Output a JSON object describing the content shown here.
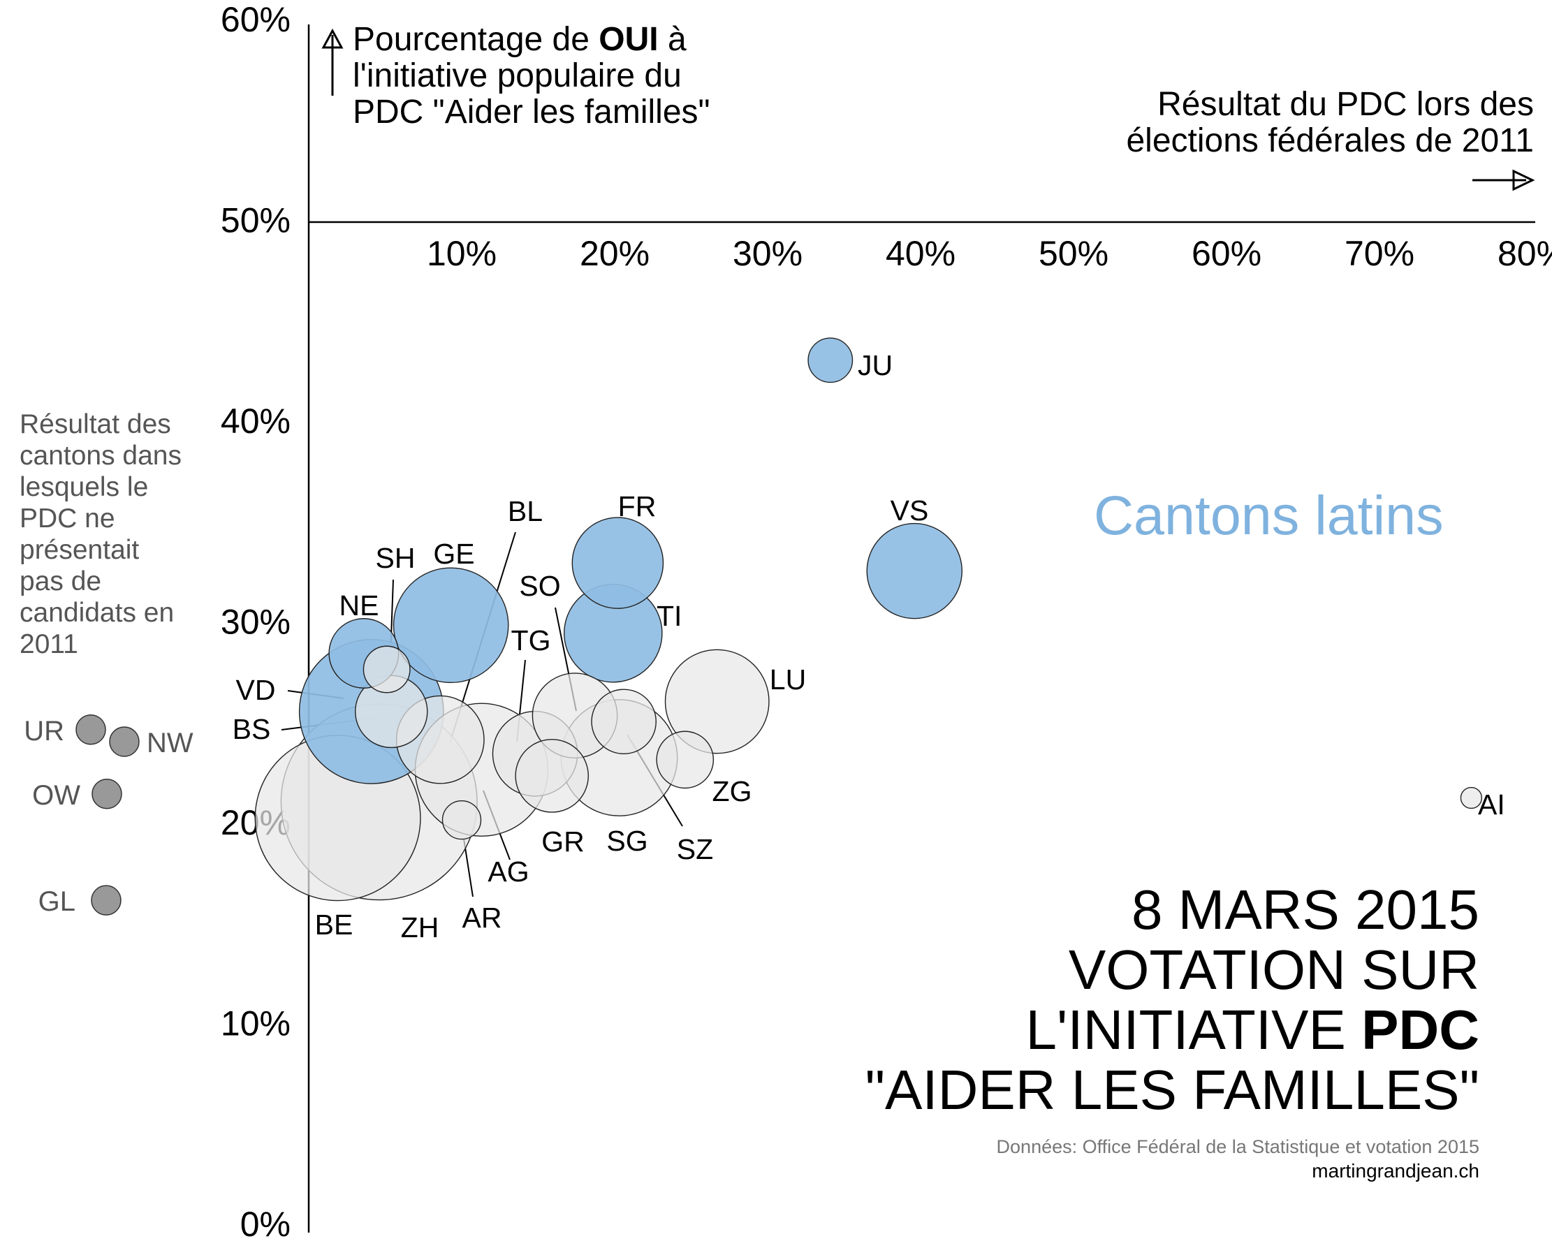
{
  "chart_data": {
    "type": "scatter",
    "subtype": "bubble",
    "ylabel_parts": [
      [
        "Pourcentage de ",
        "OUI",
        " à"
      ],
      [
        "l'initiative populaire du"
      ],
      [
        "PDC \"Aider les familles\""
      ]
    ],
    "xlabel_lines": [
      "Résultat du PDC lors des",
      "élections fédérales de 2011"
    ],
    "xlim": [
      0,
      80
    ],
    "ylim": [
      0,
      60
    ],
    "x_axis_crosses_y": 50,
    "x_ticks": [
      "10%",
      "20%",
      "30%",
      "40%",
      "50%",
      "60%",
      "70%",
      "80%"
    ],
    "y_ticks": [
      "0%",
      "10%",
      "20%",
      "30%",
      "40%",
      "50%",
      "60%"
    ],
    "grid": false,
    "annotation_latin": "Cantons latins",
    "colors": {
      "latin": "#8fbde3",
      "other": "#e8e8e8",
      "no_candidates": "#999999",
      "stroke": "#222222"
    },
    "points": [
      {
        "label": "ZH",
        "x": 4.6,
        "y": 21.0,
        "size": 1408,
        "latin": false
      },
      {
        "label": "BE",
        "x": 1.9,
        "y": 20.2,
        "size": 1001,
        "latin": false
      },
      {
        "label": "VD",
        "x": 4.1,
        "y": 25.5,
        "size": 761,
        "latin": true
      },
      {
        "label": "AG",
        "x": 11.3,
        "y": 22.6,
        "size": 646,
        "latin": false
      },
      {
        "label": "SG",
        "x": 20.3,
        "y": 23.2,
        "size": 495,
        "latin": false
      },
      {
        "label": "GE",
        "x": 9.3,
        "y": 29.8,
        "size": 482,
        "latin": true
      },
      {
        "label": "LU",
        "x": 26.7,
        "y": 26.0,
        "size": 394,
        "latin": false
      },
      {
        "label": "TI",
        "x": 19.9,
        "y": 29.4,
        "size": 351,
        "latin": true
      },
      {
        "label": "VS",
        "x": 39.6,
        "y": 32.5,
        "size": 331,
        "latin": true
      },
      {
        "label": "FR",
        "x": 20.2,
        "y": 32.9,
        "size": 303,
        "latin": true
      },
      {
        "label": "BL",
        "x": 8.6,
        "y": 24.1,
        "size": 281,
        "latin": false
      },
      {
        "label": "TG",
        "x": 14.8,
        "y": 23.4,
        "size": 263,
        "latin": false
      },
      {
        "label": "SO",
        "x": 17.4,
        "y": 25.3,
        "size": 263,
        "latin": false
      },
      {
        "label": "GR",
        "x": 15.9,
        "y": 22.3,
        "size": 194,
        "latin": false
      },
      {
        "label": "BS",
        "x": 5.4,
        "y": 25.5,
        "size": 190,
        "latin": false
      },
      {
        "label": "NE",
        "x": 3.6,
        "y": 28.4,
        "size": 177,
        "latin": true
      },
      {
        "label": "SZ",
        "x": 20.6,
        "y": 25.0,
        "size": 152,
        "latin": false
      },
      {
        "label": "ZG",
        "x": 24.6,
        "y": 23.1,
        "size": 118,
        "latin": false
      },
      {
        "label": "SH",
        "x": 5.1,
        "y": 27.6,
        "size": 79,
        "latin": false
      },
      {
        "label": "JU",
        "x": 34.1,
        "y": 43.0,
        "size": 72,
        "latin": true
      },
      {
        "label": "AR",
        "x": 10.0,
        "y": 20.1,
        "size": 54,
        "latin": false
      },
      {
        "label": "AI",
        "x": 76.0,
        "y": 21.2,
        "size": 16,
        "latin": false
      }
    ],
    "no_candidates_note": "Résultat des cantons dans lesquels le PDC ne présentait pas de candidats en 2011",
    "no_candidates_note_lines": [
      "Résultat des",
      "cantons dans",
      "lesquels le",
      "PDC ne",
      "présentait",
      "pas de",
      "candidats en",
      "2011"
    ],
    "no_candidates": [
      {
        "label": "UR",
        "y": 24.6
      },
      {
        "label": "NW",
        "y": 24.0
      },
      {
        "label": "OW",
        "y": 21.4
      },
      {
        "label": "GL",
        "y": 16.1
      }
    ]
  },
  "title_lines": [
    [
      "8 MARS 2015"
    ],
    [
      "VOTATION SUR"
    ],
    [
      "L'INITIATIVE ",
      "PDC"
    ],
    [
      "\"AIDER LES FAMILLES\""
    ]
  ],
  "source": "Données: Office Fédéral de la Statistique et votation 2015",
  "site": "martingrandjean.ch"
}
